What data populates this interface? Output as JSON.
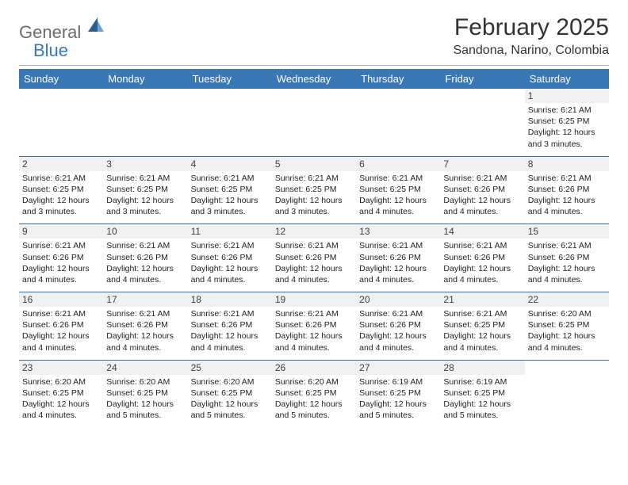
{
  "logo": {
    "word1": "General",
    "word2": "Blue"
  },
  "title": "February 2025",
  "subtitle": "Sandona, Narino, Colombia",
  "colors": {
    "header_bar": "#3a78b5",
    "row_divider": "#3f6fa0",
    "shade": "#f0f0f0",
    "text": "#222222",
    "logo_gray": "#6b6b6b",
    "logo_blue": "#3a78b5"
  },
  "weekdays": [
    "Sunday",
    "Monday",
    "Tuesday",
    "Wednesday",
    "Thursday",
    "Friday",
    "Saturday"
  ],
  "weeks": [
    [
      null,
      null,
      null,
      null,
      null,
      null,
      {
        "n": "1",
        "sr": "6:21 AM",
        "ss": "6:25 PM",
        "dl": "12 hours and 3 minutes."
      }
    ],
    [
      {
        "n": "2",
        "sr": "6:21 AM",
        "ss": "6:25 PM",
        "dl": "12 hours and 3 minutes."
      },
      {
        "n": "3",
        "sr": "6:21 AM",
        "ss": "6:25 PM",
        "dl": "12 hours and 3 minutes."
      },
      {
        "n": "4",
        "sr": "6:21 AM",
        "ss": "6:25 PM",
        "dl": "12 hours and 3 minutes."
      },
      {
        "n": "5",
        "sr": "6:21 AM",
        "ss": "6:25 PM",
        "dl": "12 hours and 3 minutes."
      },
      {
        "n": "6",
        "sr": "6:21 AM",
        "ss": "6:25 PM",
        "dl": "12 hours and 4 minutes."
      },
      {
        "n": "7",
        "sr": "6:21 AM",
        "ss": "6:26 PM",
        "dl": "12 hours and 4 minutes."
      },
      {
        "n": "8",
        "sr": "6:21 AM",
        "ss": "6:26 PM",
        "dl": "12 hours and 4 minutes."
      }
    ],
    [
      {
        "n": "9",
        "sr": "6:21 AM",
        "ss": "6:26 PM",
        "dl": "12 hours and 4 minutes."
      },
      {
        "n": "10",
        "sr": "6:21 AM",
        "ss": "6:26 PM",
        "dl": "12 hours and 4 minutes."
      },
      {
        "n": "11",
        "sr": "6:21 AM",
        "ss": "6:26 PM",
        "dl": "12 hours and 4 minutes."
      },
      {
        "n": "12",
        "sr": "6:21 AM",
        "ss": "6:26 PM",
        "dl": "12 hours and 4 minutes."
      },
      {
        "n": "13",
        "sr": "6:21 AM",
        "ss": "6:26 PM",
        "dl": "12 hours and 4 minutes."
      },
      {
        "n": "14",
        "sr": "6:21 AM",
        "ss": "6:26 PM",
        "dl": "12 hours and 4 minutes."
      },
      {
        "n": "15",
        "sr": "6:21 AM",
        "ss": "6:26 PM",
        "dl": "12 hours and 4 minutes."
      }
    ],
    [
      {
        "n": "16",
        "sr": "6:21 AM",
        "ss": "6:26 PM",
        "dl": "12 hours and 4 minutes."
      },
      {
        "n": "17",
        "sr": "6:21 AM",
        "ss": "6:26 PM",
        "dl": "12 hours and 4 minutes."
      },
      {
        "n": "18",
        "sr": "6:21 AM",
        "ss": "6:26 PM",
        "dl": "12 hours and 4 minutes."
      },
      {
        "n": "19",
        "sr": "6:21 AM",
        "ss": "6:26 PM",
        "dl": "12 hours and 4 minutes."
      },
      {
        "n": "20",
        "sr": "6:21 AM",
        "ss": "6:26 PM",
        "dl": "12 hours and 4 minutes."
      },
      {
        "n": "21",
        "sr": "6:21 AM",
        "ss": "6:25 PM",
        "dl": "12 hours and 4 minutes."
      },
      {
        "n": "22",
        "sr": "6:20 AM",
        "ss": "6:25 PM",
        "dl": "12 hours and 4 minutes."
      }
    ],
    [
      {
        "n": "23",
        "sr": "6:20 AM",
        "ss": "6:25 PM",
        "dl": "12 hours and 4 minutes."
      },
      {
        "n": "24",
        "sr": "6:20 AM",
        "ss": "6:25 PM",
        "dl": "12 hours and 5 minutes."
      },
      {
        "n": "25",
        "sr": "6:20 AM",
        "ss": "6:25 PM",
        "dl": "12 hours and 5 minutes."
      },
      {
        "n": "26",
        "sr": "6:20 AM",
        "ss": "6:25 PM",
        "dl": "12 hours and 5 minutes."
      },
      {
        "n": "27",
        "sr": "6:19 AM",
        "ss": "6:25 PM",
        "dl": "12 hours and 5 minutes."
      },
      {
        "n": "28",
        "sr": "6:19 AM",
        "ss": "6:25 PM",
        "dl": "12 hours and 5 minutes."
      },
      null
    ]
  ],
  "labels": {
    "sunrise": "Sunrise:",
    "sunset": "Sunset:",
    "daylight": "Daylight:"
  }
}
